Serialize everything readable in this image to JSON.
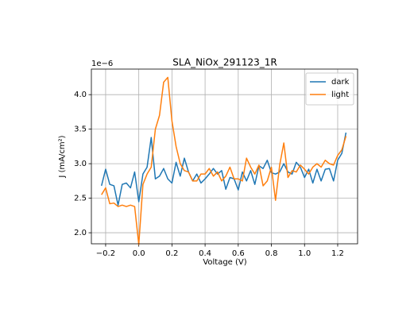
{
  "chart_data": {
    "type": "line",
    "title": "SLA_NiOx_291123_1R",
    "xlabel": "Voltage (V)",
    "ylabel": "J (mA/cm²)",
    "y_offset_label": "1e−6",
    "x": [
      -0.225,
      -0.2,
      -0.175,
      -0.15,
      -0.125,
      -0.1,
      -0.075,
      -0.05,
      -0.025,
      0.0,
      0.025,
      0.05,
      0.075,
      0.1,
      0.125,
      0.15,
      0.175,
      0.2,
      0.225,
      0.25,
      0.275,
      0.3,
      0.325,
      0.35,
      0.375,
      0.4,
      0.425,
      0.45,
      0.475,
      0.5,
      0.525,
      0.55,
      0.575,
      0.6,
      0.625,
      0.65,
      0.675,
      0.7,
      0.725,
      0.75,
      0.775,
      0.8,
      0.825,
      0.85,
      0.875,
      0.9,
      0.925,
      0.95,
      0.975,
      1.0,
      1.025,
      1.05,
      1.075,
      1.1,
      1.125,
      1.15,
      1.175,
      1.2,
      1.225,
      1.25
    ],
    "series": [
      {
        "name": "dark",
        "color": "#1f77b4",
        "values": [
          2.68,
          2.92,
          2.7,
          2.68,
          2.4,
          2.7,
          2.72,
          2.65,
          2.88,
          2.45,
          2.85,
          2.95,
          3.38,
          2.78,
          2.82,
          2.93,
          2.78,
          2.72,
          3.02,
          2.82,
          3.08,
          2.88,
          2.75,
          2.85,
          2.72,
          2.78,
          2.85,
          2.93,
          2.85,
          2.9,
          2.63,
          2.8,
          2.78,
          2.62,
          2.88,
          2.75,
          2.9,
          2.7,
          2.97,
          2.93,
          3.05,
          2.87,
          2.85,
          2.88,
          3.0,
          2.88,
          2.85,
          3.02,
          2.95,
          2.8,
          2.92,
          2.72,
          2.92,
          2.75,
          2.92,
          2.93,
          2.75,
          3.05,
          3.15,
          3.45
        ]
      },
      {
        "name": "light",
        "color": "#ff7f0e",
        "values": [
          2.55,
          2.65,
          2.42,
          2.43,
          2.38,
          2.4,
          2.38,
          2.4,
          2.38,
          1.83,
          2.7,
          2.85,
          2.95,
          3.5,
          3.7,
          4.18,
          4.25,
          3.62,
          3.25,
          3.0,
          2.9,
          2.88,
          2.75,
          2.75,
          2.85,
          2.85,
          2.93,
          2.82,
          2.88,
          2.75,
          2.82,
          2.95,
          2.78,
          2.78,
          2.75,
          3.08,
          2.95,
          2.85,
          2.98,
          2.68,
          2.75,
          2.95,
          2.47,
          2.98,
          3.3,
          2.8,
          2.9,
          2.88,
          2.98,
          2.92,
          2.85,
          2.95,
          3.0,
          2.95,
          3.05,
          3.0,
          2.98,
          3.12,
          3.2,
          3.4
        ]
      }
    ],
    "xlim": [
      -0.286,
      1.32
    ],
    "ylim": [
      1.84,
      4.37
    ],
    "xticks": [
      {
        "value": -0.2,
        "label": "−0.2"
      },
      {
        "value": 0.0,
        "label": "0.0"
      },
      {
        "value": 0.2,
        "label": "0.2"
      },
      {
        "value": 0.4,
        "label": "0.4"
      },
      {
        "value": 0.6,
        "label": "0.6"
      },
      {
        "value": 0.8,
        "label": "0.8"
      },
      {
        "value": 1.0,
        "label": "1.0"
      },
      {
        "value": 1.2,
        "label": "1.2"
      }
    ],
    "yticks": [
      {
        "value": 2.0,
        "label": "2.0"
      },
      {
        "value": 2.5,
        "label": "2.5"
      },
      {
        "value": 3.0,
        "label": "3.0"
      },
      {
        "value": 3.5,
        "label": "3.5"
      },
      {
        "value": 4.0,
        "label": "4.0"
      }
    ],
    "grid": true,
    "legend": "upper right"
  }
}
